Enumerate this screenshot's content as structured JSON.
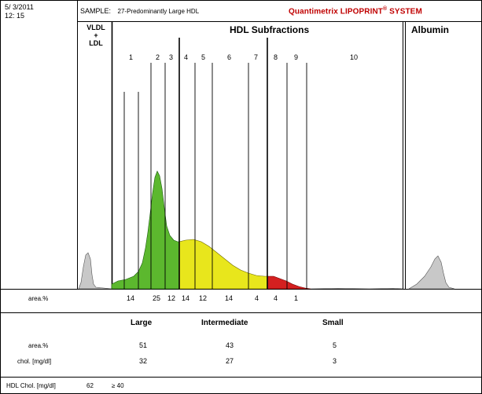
{
  "header": {
    "date": "5/ 3/2011",
    "time": "12: 15",
    "sample_label": "SAMPLE:",
    "sample_value": "27-Predominantly Large HDL",
    "brand": "Quantimetrix LIPOPRINT",
    "brand_mark": "®",
    "brand_suffix": "SYSTEM"
  },
  "sections": {
    "vldl_line1": "VLDL",
    "vldl_line2": "+",
    "vldl_line3": "LDL",
    "hdl_title": "HDL Subfractions",
    "albumin_title": "Albumin"
  },
  "fractions": [
    "1",
    "2",
    "3",
    "4",
    "5",
    "6",
    "7",
    "8",
    "9",
    "10"
  ],
  "area_row": {
    "label": "area.%",
    "values": [
      "14",
      "25",
      "12",
      "14",
      "12",
      "14",
      "4",
      "4",
      "1"
    ]
  },
  "summary": {
    "groups": [
      "Large",
      "Intermediate",
      "Small"
    ],
    "rows": [
      {
        "label": "area.%",
        "values": [
          "51",
          "43",
          "5"
        ]
      },
      {
        "label": "chol. [mg/dl]",
        "values": [
          "32",
          "27",
          "3"
        ]
      }
    ]
  },
  "footer": {
    "label": "HDL Chol. [mg/dl]",
    "value": "62",
    "reference": "≥ 40"
  },
  "colors": {
    "large": "#5cb82e",
    "intermediate": "#e8e61c",
    "small": "#d42020",
    "peak_gray": "#c8c8c8",
    "brand": "#c00000"
  }
}
